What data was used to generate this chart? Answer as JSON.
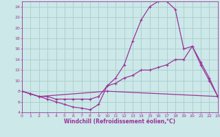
{
  "xlabel": "Windchill (Refroidissement éolien,°C)",
  "bg_color": "#cce8e8",
  "grid_color": "#aacccc",
  "line_color": "#993399",
  "line1_x": [
    0,
    1,
    2,
    3,
    4,
    5,
    6,
    7,
    8,
    9,
    10,
    11,
    12,
    13,
    14,
    15,
    16,
    17,
    18,
    19,
    20,
    21,
    22,
    23
  ],
  "line1_y": [
    8,
    7.5,
    7,
    6.5,
    6,
    5.5,
    5,
    4.8,
    4.5,
    5.5,
    9,
    10.5,
    13,
    17.5,
    21.5,
    24,
    25,
    25,
    23.5,
    16,
    16.5,
    13,
    10,
    7
  ],
  "line2_x": [
    0,
    1,
    2,
    3,
    4,
    5,
    6,
    7,
    8,
    9,
    10,
    11,
    12,
    13,
    14,
    15,
    16,
    17,
    18,
    19,
    20,
    21,
    22,
    23
  ],
  "line2_y": [
    8,
    7.5,
    7,
    7,
    6.5,
    6.5,
    6.5,
    6.5,
    6.5,
    7,
    9,
    9.5,
    10.5,
    11,
    12,
    12,
    12.5,
    13,
    14,
    14,
    16.5,
    13.5,
    10.5,
    7
  ],
  "line3_x": [
    0,
    1,
    2,
    10,
    23
  ],
  "line3_y": [
    8,
    7.5,
    7,
    8,
    7
  ],
  "xlim": [
    0,
    23
  ],
  "ylim": [
    4,
    25
  ],
  "xticks": [
    0,
    1,
    2,
    3,
    4,
    5,
    6,
    7,
    8,
    9,
    10,
    11,
    12,
    13,
    14,
    15,
    16,
    17,
    18,
    19,
    20,
    21,
    22,
    23
  ],
  "yticks": [
    4,
    6,
    8,
    10,
    12,
    14,
    16,
    18,
    20,
    22,
    24
  ],
  "tick_fontsize": 4.5,
  "xlabel_fontsize": 5.5
}
